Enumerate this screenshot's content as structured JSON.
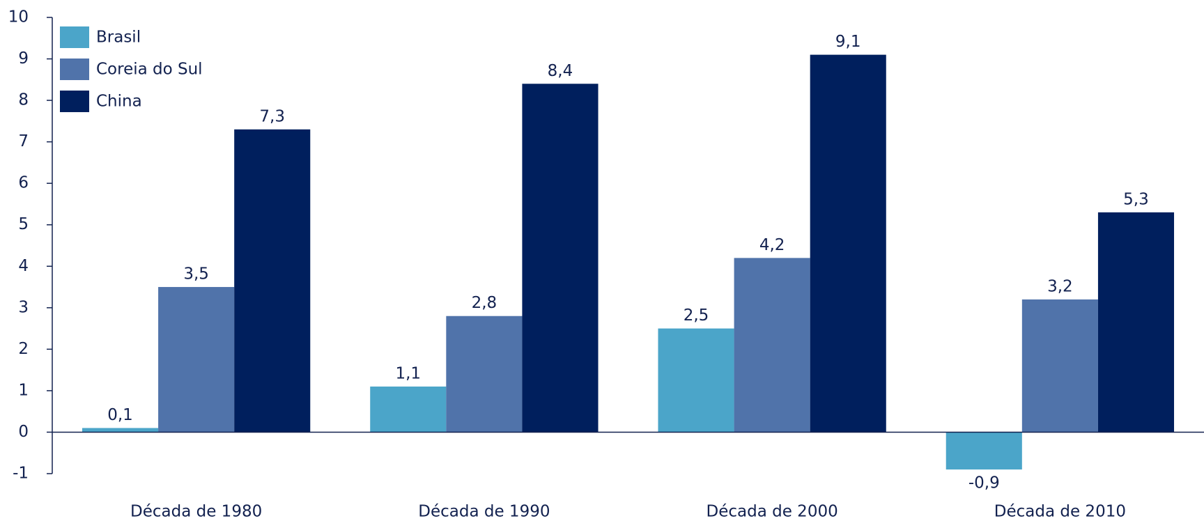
{
  "chart_data": {
    "type": "bar",
    "categories": [
      "Década de 1980",
      "Década de 1990",
      "Década de 2000",
      "Década de 2010"
    ],
    "series": [
      {
        "name": "Brasil",
        "color": "#4ba5c9",
        "values": [
          0.1,
          1.1,
          2.5,
          -0.9
        ],
        "value_labels": [
          "0,1",
          "1,1",
          "2,5",
          "-0,9"
        ]
      },
      {
        "name": "Coreia do Sul",
        "color": "#5073aa",
        "values": [
          3.5,
          2.8,
          4.2,
          3.2
        ],
        "value_labels": [
          "3,5",
          "2,8",
          "4,2",
          "3,2"
        ]
      },
      {
        "name": "China",
        "color": "#001f5d",
        "values": [
          7.3,
          8.4,
          9.1,
          5.3
        ],
        "value_labels": [
          "7,3",
          "8,4",
          "9,1",
          "5,3"
        ]
      }
    ],
    "ylim": [
      -1,
      10
    ],
    "yticks": [
      -1,
      0,
      1,
      2,
      3,
      4,
      5,
      6,
      7,
      8,
      9,
      10
    ],
    "grid": false,
    "legend": "upper left"
  }
}
